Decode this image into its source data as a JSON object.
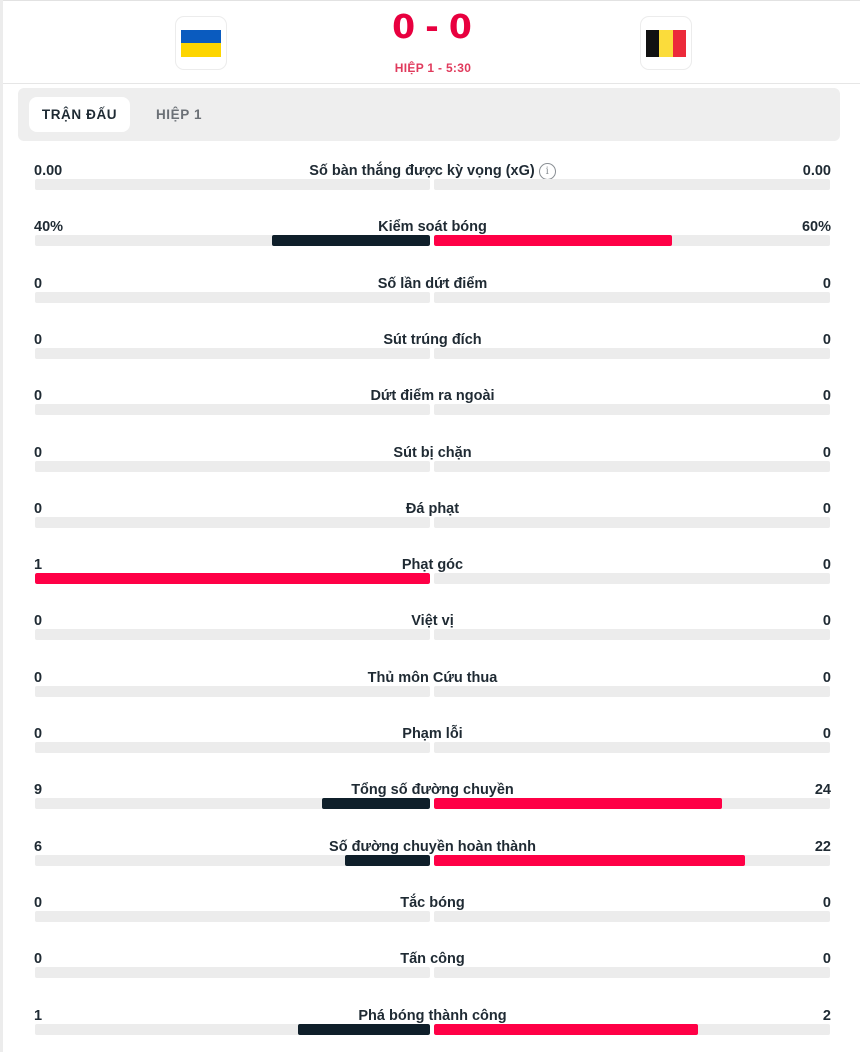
{
  "match": {
    "home_team": {
      "flag_icon": "ukraine-flag-icon",
      "flag_colors": [
        "#0a5bbf",
        "#fdd500"
      ]
    },
    "away_team": {
      "flag_icon": "belgium-flag-icon",
      "flag_colors": [
        "#111111",
        "#fbdc3b",
        "#ec2a3a"
      ]
    },
    "score_home": "0",
    "score_separator": "-",
    "score_away": "0",
    "status": "HIỆP 1 - 5:30"
  },
  "tabs": [
    {
      "label": "TRẬN ĐẤU",
      "active": true
    },
    {
      "label": "HIỆP 1",
      "active": false
    }
  ],
  "colors": {
    "accent": "#ff0046",
    "dark_bar": "#0f1f2a",
    "track": "#ececec",
    "score": "#e8003f"
  },
  "stats": [
    {
      "label": "Số bàn thắng được kỳ vọng (xG)",
      "home": "0.00",
      "away": "0.00",
      "home_pct": 0,
      "away_pct": 0,
      "info_icon": "ⓘ"
    },
    {
      "label": "Kiểm soát bóng",
      "home": "40%",
      "away": "60%",
      "home_pct": 40,
      "away_pct": 60
    },
    {
      "label": "Số lần dứt điểm",
      "home": "0",
      "away": "0",
      "home_pct": 0,
      "away_pct": 0
    },
    {
      "label": "Sút trúng đích",
      "home": "0",
      "away": "0",
      "home_pct": 0,
      "away_pct": 0
    },
    {
      "label": "Dứt điểm ra ngoài",
      "home": "0",
      "away": "0",
      "home_pct": 0,
      "away_pct": 0
    },
    {
      "label": "Sút bị chặn",
      "home": "0",
      "away": "0",
      "home_pct": 0,
      "away_pct": 0
    },
    {
      "label": "Đá phạt",
      "home": "0",
      "away": "0",
      "home_pct": 0,
      "away_pct": 0
    },
    {
      "label": "Phạt góc",
      "home": "1",
      "away": "0",
      "home_pct": 100,
      "away_pct": 0
    },
    {
      "label": "Việt vị",
      "home": "0",
      "away": "0",
      "home_pct": 0,
      "away_pct": 0
    },
    {
      "label": "Thủ môn Cứu thua",
      "home": "0",
      "away": "0",
      "home_pct": 0,
      "away_pct": 0
    },
    {
      "label": "Phạm lỗi",
      "home": "0",
      "away": "0",
      "home_pct": 0,
      "away_pct": 0
    },
    {
      "label": "Tổng số đường chuyền",
      "home": "9",
      "away": "24",
      "home_pct": 27.3,
      "away_pct": 72.7
    },
    {
      "label": "Số đường chuyền hoàn thành",
      "home": "6",
      "away": "22",
      "home_pct": 21.4,
      "away_pct": 78.6
    },
    {
      "label": "Tắc bóng",
      "home": "0",
      "away": "0",
      "home_pct": 0,
      "away_pct": 0
    },
    {
      "label": "Tấn công",
      "home": "0",
      "away": "0",
      "home_pct": 0,
      "away_pct": 0
    },
    {
      "label": "Phá bóng thành công",
      "home": "1",
      "away": "2",
      "home_pct": 33.3,
      "away_pct": 66.7
    }
  ]
}
